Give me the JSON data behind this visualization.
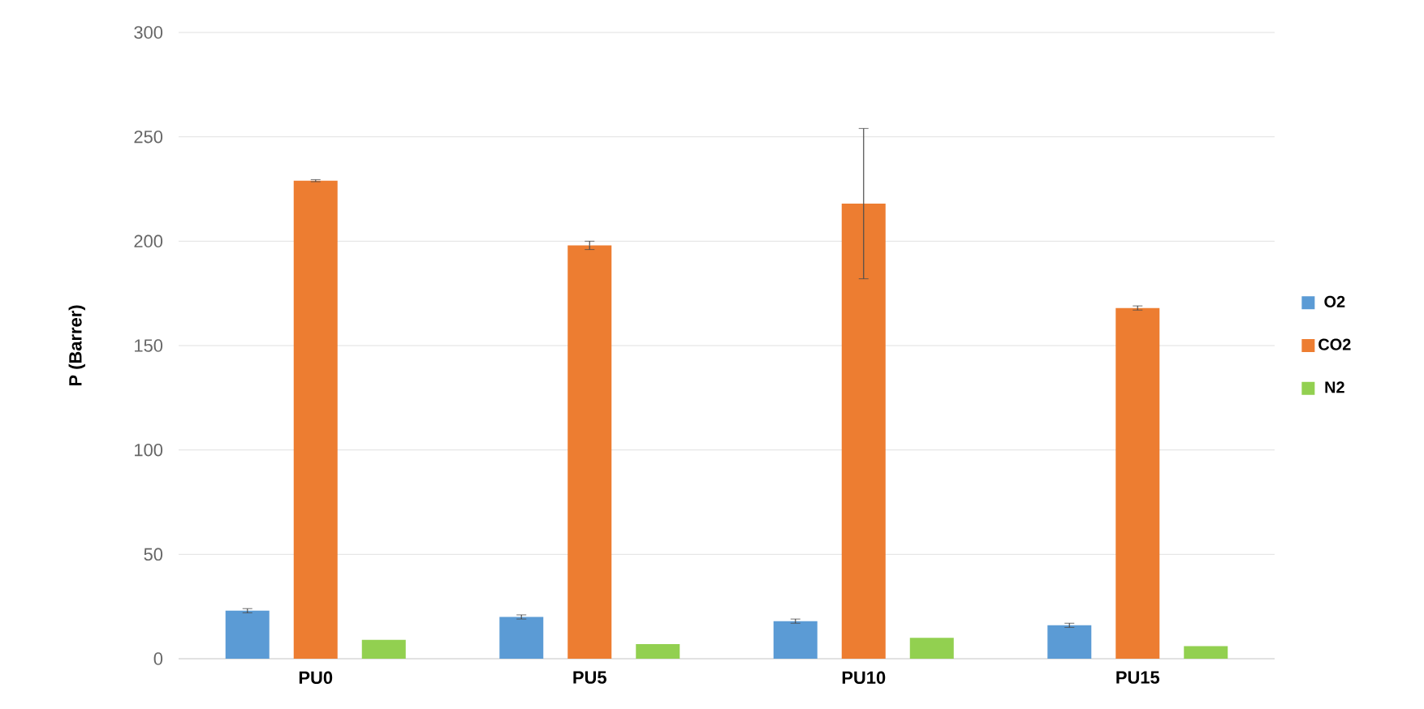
{
  "chart_data": {
    "type": "bar",
    "ylabel": "P (Barrer)",
    "categories": [
      "PU0",
      "PU5",
      "PU10",
      "PU15"
    ],
    "series": [
      {
        "name": "O2",
        "color": "#5b9bd5",
        "values": [
          23,
          20,
          18,
          16
        ],
        "errors": [
          1,
          1,
          1,
          1
        ]
      },
      {
        "name": "CO2",
        "color": "#ed7d31",
        "values": [
          229,
          198,
          218,
          168
        ],
        "errors": [
          0.5,
          2,
          36,
          1
        ]
      },
      {
        "name": "N2",
        "color": "#92d050",
        "values": [
          9,
          7,
          10,
          6
        ],
        "errors": [
          null,
          null,
          null,
          null
        ]
      }
    ],
    "ylim": [
      0,
      300
    ],
    "yticks": [
      0,
      50,
      100,
      150,
      200,
      250,
      300
    ],
    "grid": "y",
    "legend": "right"
  }
}
